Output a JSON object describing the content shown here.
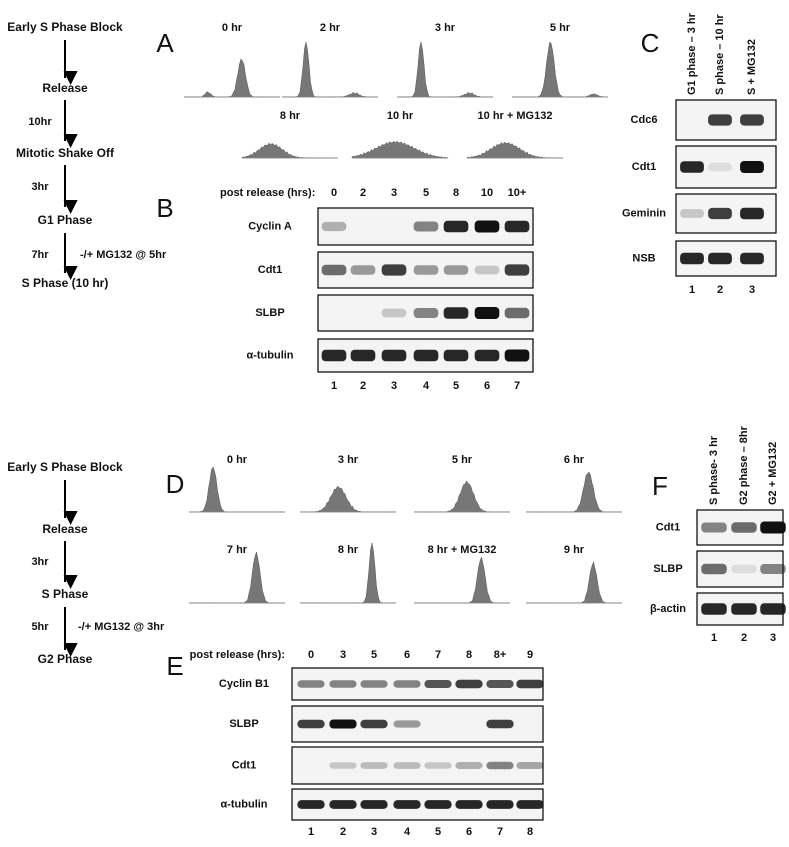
{
  "flow1": {
    "steps": [
      "Early S Phase Block",
      "Release",
      "Mitotic Shake Off",
      "G1 Phase",
      "S Phase (10 hr)"
    ],
    "times": [
      "10hr",
      "3hr",
      "7hr"
    ],
    "note": "-/+ MG132 @ 5hr"
  },
  "panel_a": {
    "label": "A",
    "histograms": [
      "0 hr",
      "2 hr",
      "3 hr",
      "5 hr",
      "8 hr",
      "10 hr",
      "10 hr + MG132"
    ]
  },
  "panel_b": {
    "label": "B",
    "header": "post release (hrs):",
    "lanes": [
      "0",
      "2",
      "3",
      "5",
      "8",
      "10",
      "10+"
    ],
    "rows": [
      "Cyclin A",
      "Cdt1",
      "SLBP",
      "α-tubulin"
    ],
    "lane_numbers": [
      1,
      2,
      3,
      4,
      5,
      6,
      7
    ]
  },
  "panel_c": {
    "label": "C",
    "columns": [
      "G1 phase – 3 hr",
      "S phase – 10 hr",
      "S + MG132"
    ],
    "rows": [
      "Cdc6",
      "Cdt1",
      "Geminin",
      "NSB"
    ],
    "lane_numbers": [
      1,
      2,
      3
    ]
  },
  "flow2": {
    "steps": [
      "Early S Phase Block",
      "Release",
      "S Phase",
      "G2 Phase"
    ],
    "times": [
      "3hr",
      "5hr"
    ],
    "note": "-/+ MG132 @ 3hr"
  },
  "panel_d": {
    "label": "D",
    "histograms": [
      "0 hr",
      "3 hr",
      "5 hr",
      "6 hr",
      "7 hr",
      "8 hr",
      "8 hr + MG132",
      "9 hr"
    ]
  },
  "panel_e": {
    "label": "E",
    "header": "post release (hrs):",
    "lanes": [
      "0",
      "3",
      "5",
      "6",
      "7",
      "8",
      "8+",
      "9"
    ],
    "rows": [
      "Cyclin B1",
      "SLBP",
      "Cdt1",
      "α-tubulin"
    ],
    "lane_numbers": [
      1,
      2,
      3,
      4,
      5,
      6,
      7,
      8
    ]
  },
  "panel_f": {
    "label": "F",
    "columns": [
      "S phase- 3 hr",
      "G2 phase – 8hr",
      "G2 + MG132"
    ],
    "rows": [
      "Cdt1",
      "SLBP",
      "β-actin"
    ],
    "lane_numbers": [
      1,
      2,
      3
    ]
  }
}
